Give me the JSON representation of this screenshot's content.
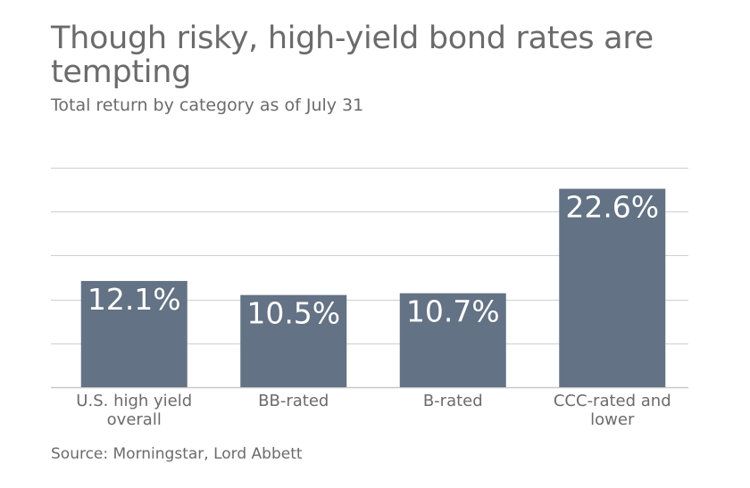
{
  "title": "Though risky, high-yield bond rates are tempting",
  "subtitle": "Total return by category as of July 31",
  "source": "Source: Morningstar, Lord Abbett",
  "colors": {
    "bar": "#637284",
    "text": "#6b6b6b",
    "grid": "#cfcfcf"
  },
  "chart_data": {
    "type": "bar",
    "categories": [
      [
        "U.S. high yield",
        "overall"
      ],
      [
        "BB-rated"
      ],
      [
        "B-rated"
      ],
      [
        "CCC-rated and",
        "lower"
      ]
    ],
    "values": [
      12.1,
      10.5,
      10.7,
      22.6
    ],
    "value_labels": [
      "12.1%",
      "10.5%",
      "10.7%",
      "22.6%"
    ],
    "ylim": [
      0,
      25
    ],
    "gridlines": [
      0,
      5,
      10,
      15,
      20,
      25
    ],
    "grid": true,
    "legend": "none",
    "xlabel": "",
    "ylabel": ""
  }
}
